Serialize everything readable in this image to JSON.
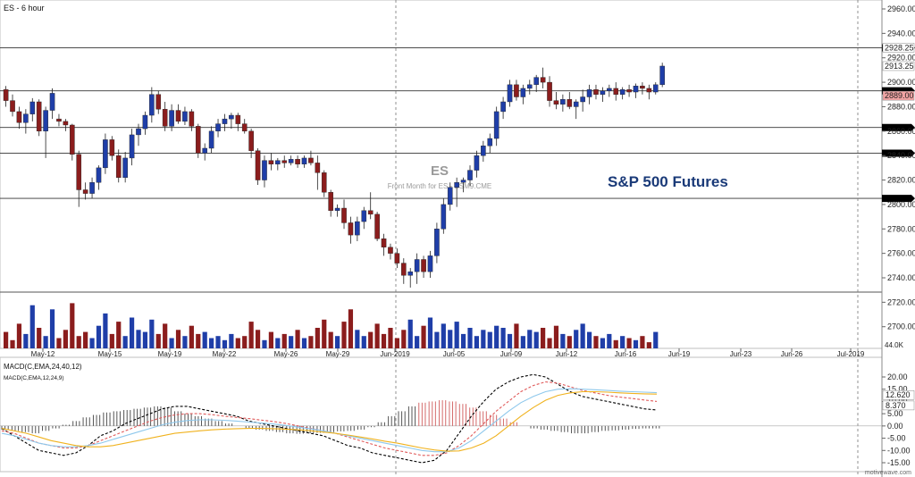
{
  "chart_data": [
    {
      "type": "candlestick",
      "symbol_label": "ES - 6 hour",
      "watermark": {
        "symbol": "ES",
        "description": "Front Month for ES - ESM9.CME"
      },
      "annotation": "S&P 500 Futures",
      "ylim": [
        2725,
        2965
      ],
      "y_ticks": [
        2960,
        2940,
        2920,
        2900,
        2880,
        2860,
        2840,
        2820,
        2800,
        2780,
        2760,
        2740,
        2720,
        2700
      ],
      "price_labels": [
        {
          "label": "2928.25",
          "value": 2928.25,
          "color": "#ffffff"
        },
        {
          "label": "2913.25",
          "value": 2913.25,
          "color": "#ffffff"
        },
        {
          "label": "2889.00",
          "value": 2889.0,
          "color": "#f2a4a4"
        }
      ],
      "horizontal_levels": [
        2928.25,
        2893,
        2863,
        2842,
        2805
      ],
      "level_marker_color": "#000000",
      "x_labels": [
        "May-12",
        "May-15",
        "May-19",
        "May-22",
        "May-26",
        "May-29",
        "Jun-2019",
        "Jun-05",
        "Jun-09",
        "Jun-12",
        "Jun-16",
        "Jun-19",
        "Jun-23",
        "Jun-26",
        "Jul-2019"
      ],
      "up_color": "#1f3ea8",
      "down_color": "#8b1d1d",
      "ohlc": [
        [
          2894,
          2897,
          2880,
          2885
        ],
        [
          2885,
          2890,
          2872,
          2876
        ],
        [
          2876,
          2880,
          2862,
          2867
        ],
        [
          2867,
          2878,
          2858,
          2874
        ],
        [
          2874,
          2887,
          2868,
          2884
        ],
        [
          2884,
          2886,
          2856,
          2860
        ],
        [
          2860,
          2880,
          2838,
          2877
        ],
        [
          2877,
          2895,
          2870,
          2891
        ],
        [
          2870,
          2874,
          2864,
          2868
        ],
        [
          2868,
          2870,
          2860,
          2865
        ],
        [
          2865,
          2866,
          2836,
          2841
        ],
        [
          2841,
          2844,
          2798,
          2812
        ],
        [
          2812,
          2818,
          2804,
          2809
        ],
        [
          2809,
          2822,
          2805,
          2818
        ],
        [
          2818,
          2832,
          2812,
          2830
        ],
        [
          2830,
          2858,
          2825,
          2853
        ],
        [
          2853,
          2856,
          2836,
          2840
        ],
        [
          2840,
          2845,
          2818,
          2822
        ],
        [
          2822,
          2843,
          2818,
          2838
        ],
        [
          2838,
          2862,
          2832,
          2857
        ],
        [
          2857,
          2866,
          2848,
          2862
        ],
        [
          2862,
          2876,
          2857,
          2873
        ],
        [
          2873,
          2896,
          2867,
          2890
        ],
        [
          2890,
          2893,
          2874,
          2878
        ],
        [
          2878,
          2884,
          2860,
          2864
        ],
        [
          2864,
          2882,
          2860,
          2877
        ],
        [
          2877,
          2882,
          2866,
          2868
        ],
        [
          2868,
          2880,
          2865,
          2876
        ],
        [
          2876,
          2878,
          2860,
          2864
        ],
        [
          2864,
          2866,
          2838,
          2842
        ],
        [
          2842,
          2850,
          2836,
          2846
        ],
        [
          2846,
          2864,
          2842,
          2860
        ],
        [
          2860,
          2870,
          2855,
          2866
        ],
        [
          2866,
          2874,
          2860,
          2870
        ],
        [
          2870,
          2875,
          2862,
          2873
        ],
        [
          2873,
          2875,
          2860,
          2866
        ],
        [
          2866,
          2870,
          2858,
          2860
        ],
        [
          2860,
          2862,
          2838,
          2844
        ],
        [
          2844,
          2846,
          2816,
          2820
        ],
        [
          2820,
          2840,
          2814,
          2836
        ],
        [
          2836,
          2842,
          2828,
          2833
        ],
        [
          2833,
          2838,
          2828,
          2836
        ],
        [
          2836,
          2840,
          2830,
          2834
        ],
        [
          2834,
          2840,
          2832,
          2837
        ],
        [
          2837,
          2840,
          2830,
          2833
        ],
        [
          2833,
          2840,
          2830,
          2838
        ],
        [
          2838,
          2844,
          2832,
          2834
        ],
        [
          2834,
          2840,
          2812,
          2826
        ],
        [
          2826,
          2828,
          2806,
          2810
        ],
        [
          2810,
          2812,
          2790,
          2795
        ],
        [
          2795,
          2800,
          2790,
          2797
        ],
        [
          2797,
          2804,
          2780,
          2785
        ],
        [
          2785,
          2790,
          2768,
          2775
        ],
        [
          2775,
          2790,
          2770,
          2786
        ],
        [
          2786,
          2798,
          2780,
          2795
        ],
        [
          2795,
          2810,
          2788,
          2792
        ],
        [
          2792,
          2794,
          2770,
          2772
        ],
        [
          2772,
          2776,
          2758,
          2765
        ],
        [
          2765,
          2768,
          2755,
          2760
        ],
        [
          2760,
          2764,
          2748,
          2752
        ],
        [
          2752,
          2756,
          2735,
          2742
        ],
        [
          2742,
          2748,
          2732,
          2745
        ],
        [
          2745,
          2760,
          2735,
          2755
        ],
        [
          2755,
          2758,
          2740,
          2745
        ],
        [
          2745,
          2762,
          2740,
          2758
        ],
        [
          2758,
          2785,
          2752,
          2780
        ],
        [
          2780,
          2805,
          2776,
          2800
        ],
        [
          2800,
          2818,
          2795,
          2814
        ],
        [
          2814,
          2822,
          2798,
          2818
        ],
        [
          2818,
          2822,
          2810,
          2820
        ],
        [
          2820,
          2832,
          2815,
          2828
        ],
        [
          2828,
          2844,
          2822,
          2840
        ],
        [
          2840,
          2852,
          2835,
          2848
        ],
        [
          2848,
          2858,
          2842,
          2854
        ],
        [
          2854,
          2880,
          2848,
          2876
        ],
        [
          2876,
          2888,
          2870,
          2884
        ],
        [
          2884,
          2902,
          2880,
          2898
        ],
        [
          2898,
          2902,
          2885,
          2888
        ],
        [
          2888,
          2898,
          2882,
          2895
        ],
        [
          2895,
          2902,
          2890,
          2898
        ],
        [
          2898,
          2906,
          2892,
          2904
        ],
        [
          2904,
          2912,
          2895,
          2900
        ],
        [
          2900,
          2905,
          2880,
          2885
        ],
        [
          2885,
          2892,
          2878,
          2882
        ],
        [
          2882,
          2890,
          2876,
          2886
        ],
        [
          2886,
          2892,
          2878,
          2880
        ],
        [
          2880,
          2886,
          2870,
          2884
        ],
        [
          2884,
          2894,
          2876,
          2888
        ],
        [
          2888,
          2898,
          2882,
          2894
        ],
        [
          2894,
          2898,
          2886,
          2890
        ],
        [
          2890,
          2896,
          2884,
          2893
        ],
        [
          2893,
          2898,
          2888,
          2895
        ],
        [
          2895,
          2900,
          2885,
          2890
        ],
        [
          2890,
          2896,
          2886,
          2894
        ],
        [
          2894,
          2898,
          2888,
          2892
        ],
        [
          2892,
          2899,
          2887,
          2897
        ],
        [
          2897,
          2900,
          2890,
          2895
        ],
        [
          2895,
          2898,
          2886,
          2892
        ],
        [
          2892,
          2900,
          2890,
          2898
        ],
        [
          2898,
          2916,
          2896,
          2913.25
        ]
      ],
      "volume_colors": "up/down by candle",
      "volume": [
        8,
        4,
        12,
        7,
        21,
        10,
        6,
        19,
        5,
        9,
        22,
        6,
        8,
        5,
        11,
        17,
        7,
        13,
        6,
        15,
        9,
        8,
        14,
        7,
        12,
        5,
        9,
        6,
        11,
        7,
        8,
        5,
        6,
        4,
        7,
        5,
        6,
        13,
        9,
        4,
        8,
        5,
        7,
        6,
        9,
        5,
        6,
        10,
        14,
        8,
        6,
        13,
        19,
        9,
        6,
        8,
        12,
        7,
        10,
        5,
        9,
        14,
        6,
        11,
        15,
        8,
        12,
        9,
        13,
        7,
        10,
        6,
        9,
        8,
        11,
        10,
        7,
        12,
        6,
        9,
        8,
        10,
        5,
        11,
        7,
        6,
        9,
        12,
        8,
        6,
        5,
        7,
        4,
        6,
        5,
        4,
        6,
        3,
        8
      ]
    },
    {
      "type": "line",
      "title": "MACD(C,EMA,24,40,12)",
      "subtitle": "MACD(C,EMA,12,24,9)",
      "ylim": [
        -18,
        25
      ],
      "y_ticks": [
        20.0,
        15.0,
        10.0,
        5.0,
        0.0,
        -5.0,
        -10.0,
        -15.0
      ],
      "tick_labels": [
        "20.00",
        "15.00",
        "10.00",
        "5.00",
        "0.00",
        "-5.00",
        "-10.00",
        "-15.00"
      ],
      "value_labels": [
        {
          "label": "12.620",
          "value": 12.62
        },
        {
          "label": "8.370",
          "value": 8.37
        }
      ],
      "series": [
        {
          "color": "#000000",
          "dash": true,
          "values": [
            -1,
            -4,
            -7,
            -10,
            -11,
            -12,
            -11,
            -8,
            -4,
            -2,
            1,
            3,
            5,
            7,
            8,
            8,
            7,
            6,
            5,
            4,
            2,
            1,
            0,
            -1,
            -2,
            -3,
            -4,
            -6,
            -8,
            -9,
            -11,
            -12,
            -13,
            -14,
            -15,
            -14,
            -10,
            -3,
            4,
            10,
            15,
            18,
            20,
            21,
            20,
            17,
            14,
            12,
            11,
            10,
            9,
            8,
            7,
            6.5
          ]
        },
        {
          "color": "#e05a5a",
          "dash": true,
          "values": [
            -2,
            -3,
            -5,
            -7,
            -8,
            -9,
            -9,
            -8,
            -6,
            -4,
            -2,
            0,
            2,
            3.5,
            4.5,
            5,
            5,
            4.6,
            4,
            3.5,
            3,
            2.4,
            1.8,
            1,
            0,
            -1,
            -2,
            -3,
            -4.5,
            -6,
            -7.5,
            -9,
            -10,
            -11,
            -12,
            -12,
            -11,
            -8,
            -4,
            1,
            6,
            10,
            14,
            16.5,
            18,
            17.5,
            16,
            14.5,
            13.5,
            12.5,
            11.8,
            11.2,
            10.6,
            10
          ]
        },
        {
          "color": "#8ec8ec",
          "dash": false,
          "values": [
            -3,
            -4,
            -5.5,
            -7,
            -8,
            -8.5,
            -8.5,
            -8,
            -7,
            -5.5,
            -4,
            -2.5,
            -1,
            0.5,
            1.5,
            2.2,
            2.5,
            2.5,
            2.3,
            2,
            1.6,
            1.2,
            0.8,
            0.2,
            -0.5,
            -1.2,
            -2,
            -3,
            -4,
            -5,
            -6,
            -7,
            -8,
            -9,
            -10,
            -10.5,
            -10.5,
            -9,
            -6,
            -2,
            2,
            6,
            9.5,
            12,
            14,
            15,
            15.2,
            15,
            14.8,
            14.5,
            14.2,
            14,
            13.8,
            13.6
          ]
        },
        {
          "color": "#f0b21e",
          "dash": false,
          "values": [
            -1,
            -2,
            -3,
            -4.5,
            -6,
            -7,
            -8,
            -8.5,
            -8.5,
            -8,
            -7,
            -6,
            -5,
            -4,
            -3,
            -2.5,
            -2,
            -1.6,
            -1.3,
            -1.1,
            -1,
            -1,
            -1.1,
            -1.3,
            -1.6,
            -2,
            -2.5,
            -3,
            -3.7,
            -4.5,
            -5.3,
            -6.2,
            -7,
            -8,
            -9,
            -9.8,
            -10.3,
            -10.2,
            -9,
            -7,
            -4,
            0,
            4,
            7.5,
            10.5,
            12.5,
            13.5,
            14,
            14,
            13.8,
            13.5,
            13.3,
            13.1,
            13
          ]
        }
      ],
      "histogram": [
        -1.5,
        -2,
        -2.5,
        -3,
        -2,
        -1,
        0.5,
        2,
        3.5,
        4.5,
        5.5,
        6,
        6.5,
        7,
        7.5,
        8,
        7.5,
        6,
        5,
        4,
        3,
        2,
        1,
        0,
        -1,
        -1.5,
        -2,
        -2.5,
        -3,
        -3.2,
        -3,
        -2.8,
        -2.5,
        -2.2,
        -2,
        -1.5,
        -0.5,
        1.5,
        4,
        6,
        8,
        9.5,
        10,
        10.5,
        10,
        9,
        7.5,
        6,
        4.5,
        3,
        1.5,
        0,
        -1,
        -1.5,
        -2,
        -2.5,
        -3,
        -3,
        -2.5,
        -2,
        -1.8,
        -1.5,
        -1.2,
        -1,
        -1
      ]
    }
  ],
  "footer": {
    "watermark": "motivewave.com"
  }
}
